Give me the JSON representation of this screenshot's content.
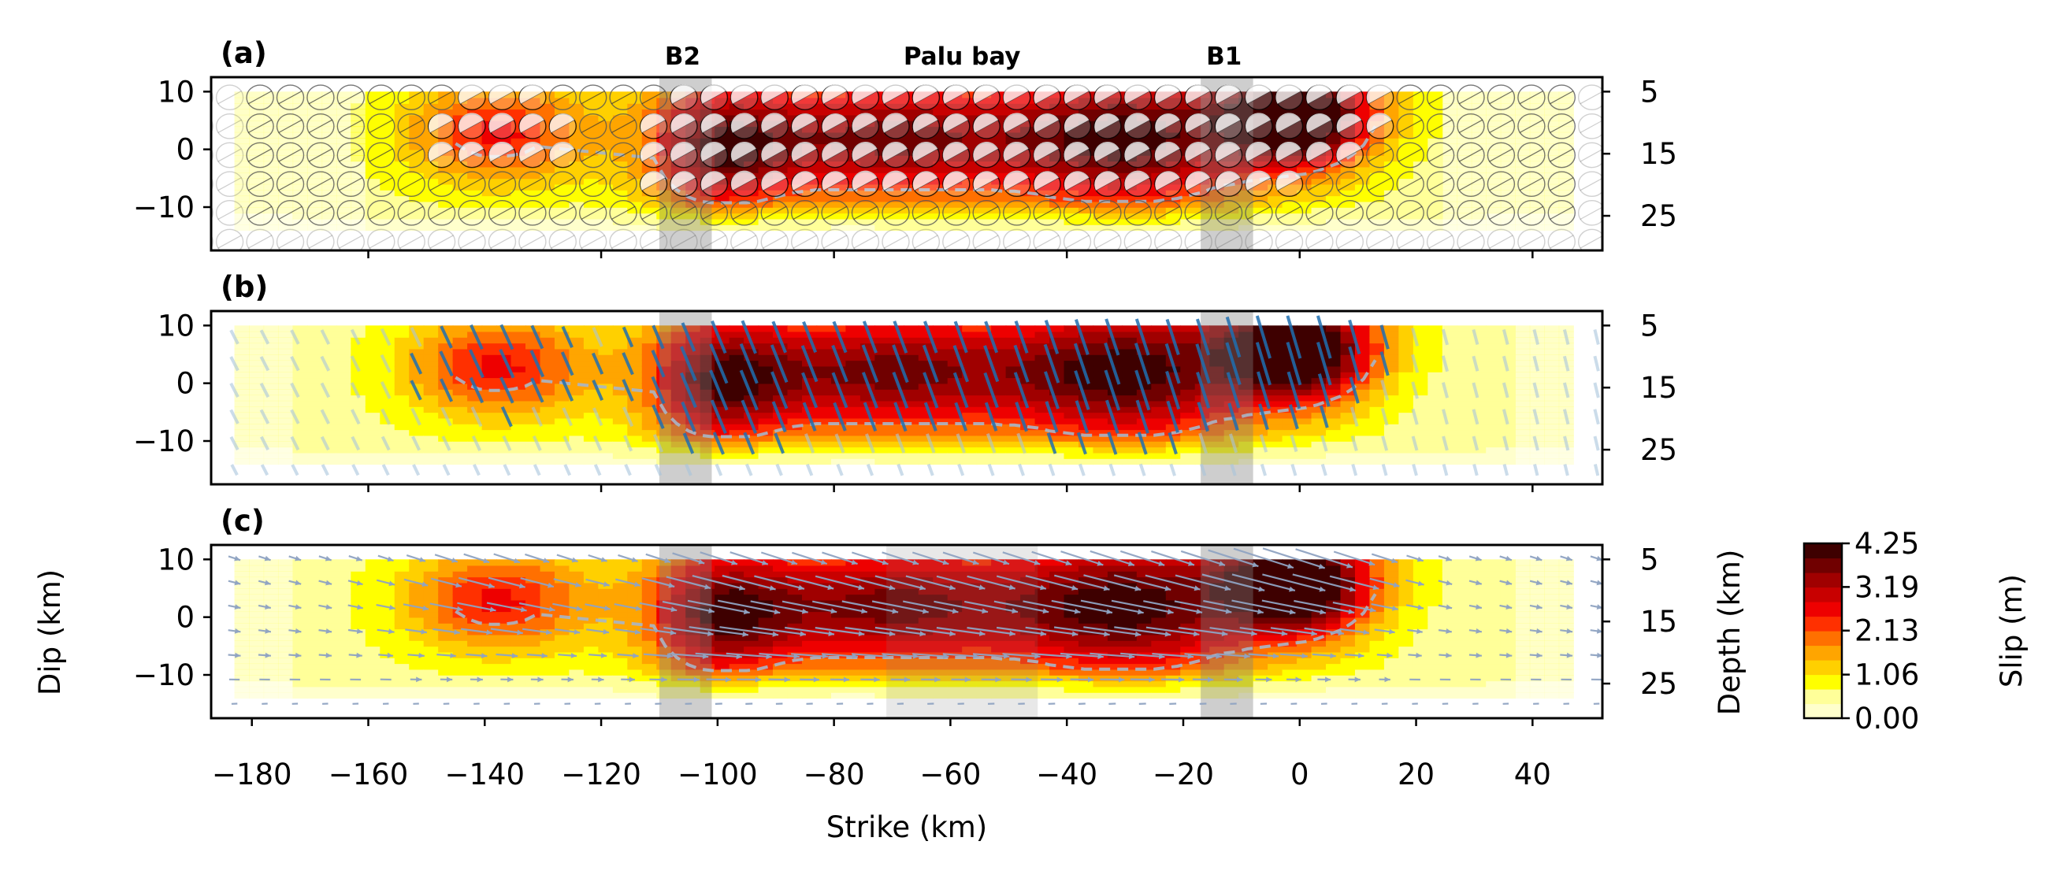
{
  "chart_data": {
    "type": "heatmap",
    "panels": [
      {
        "label": "(a)",
        "overlay": "focal mechanisms"
      },
      {
        "label": "(b)",
        "overlay": "strike lines"
      },
      {
        "label": "(c)",
        "overlay": "rake vectors"
      }
    ],
    "annotations": [
      {
        "text": "B2",
        "x": -106
      },
      {
        "text": "Palu bay",
        "x": -58
      },
      {
        "text": "B1",
        "x": -13
      }
    ],
    "shaded_bands": [
      {
        "name": "B2",
        "x": [
          -110,
          -101
        ],
        "panels": [
          0,
          1,
          2
        ]
      },
      {
        "name": "B1",
        "x": [
          -17,
          -8
        ],
        "panels": [
          0,
          1,
          2
        ]
      },
      {
        "name": "Palu bay",
        "x": [
          -71,
          -45
        ],
        "panels": [
          2
        ]
      }
    ],
    "xlabel": "Strike (km)",
    "ylabel": "Dip (km)",
    "y2label": "Depth (km)",
    "xlim": [
      -187,
      52
    ],
    "ylim": [
      -17.5,
      12.5
    ],
    "xticks": [
      -180,
      -160,
      -140,
      -120,
      -100,
      -80,
      -60,
      -40,
      -20,
      0,
      20,
      40
    ],
    "xtick_labels": [
      "−180",
      "−160",
      "−140",
      "−120",
      "−100",
      "−80",
      "−60",
      "−40",
      "−20",
      "0",
      "20",
      "40"
    ],
    "yticks": [
      10,
      0,
      -10
    ],
    "ytick_labels": [
      "10",
      "0",
      "−10"
    ],
    "depth_ticks": [
      5,
      15,
      25
    ],
    "depth_tick_labels": [
      "5",
      "15",
      "25"
    ],
    "colorbar": {
      "label": "Slip (m)",
      "min": 0.0,
      "max": 4.25,
      "ticks": [
        0.0,
        1.06,
        2.13,
        3.19,
        4.25
      ],
      "tick_labels": [
        "0.00",
        "1.06",
        "2.13",
        "3.19",
        "4.25"
      ],
      "colors": [
        "#ffffcc",
        "#ffff99",
        "#ffff00",
        "#ffd000",
        "#ffa500",
        "#ff7000",
        "#ff3000",
        "#ee0000",
        "#c80000",
        "#a00000",
        "#700000",
        "#3e0000"
      ]
    },
    "fault_extent": {
      "x": [
        -183,
        47
      ],
      "y": [
        -14,
        10
      ]
    },
    "slip_peaks": [
      {
        "x": -138,
        "y": 3,
        "sx": 16,
        "sy": 9,
        "slip": 2.0
      },
      {
        "x": -72,
        "y": 2,
        "sx": 30,
        "sy": 11,
        "slip": 3.1
      },
      {
        "x": -100,
        "y": 0,
        "sx": 12,
        "sy": 12,
        "slip": 2.3
      },
      {
        "x": -28,
        "y": 2,
        "sx": 22,
        "sy": 13,
        "slip": 3.2
      },
      {
        "x": 0,
        "y": 6,
        "sx": 13,
        "sy": 9,
        "slip": 4.25
      }
    ],
    "slip_background": 0.55,
    "contour_level": 2.13
  }
}
